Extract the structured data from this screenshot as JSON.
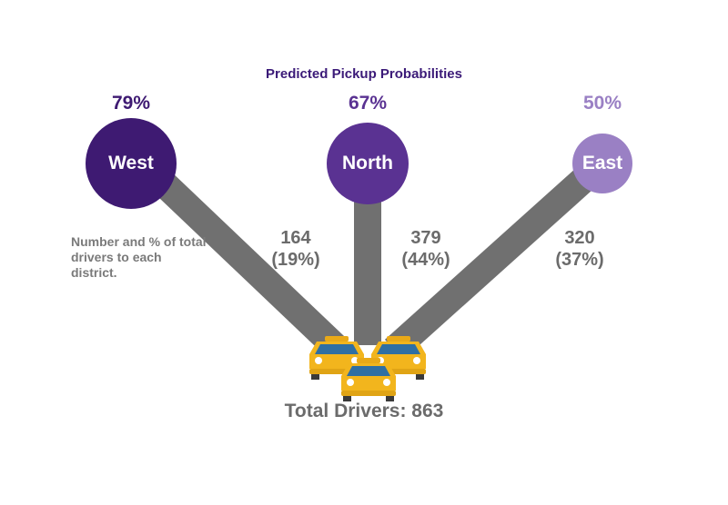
{
  "title": "Predicted Pickup Probabilities",
  "districts": [
    {
      "name": "West",
      "probability": "79%",
      "drivers": "164",
      "share": "(19%)",
      "color": "#3e1a72"
    },
    {
      "name": "North",
      "probability": "67%",
      "drivers": "379",
      "share": "(44%)",
      "color": "#5a3292"
    },
    {
      "name": "East",
      "probability": "50%",
      "drivers": "320",
      "share": "(37%)",
      "color": "#9a80c4"
    }
  ],
  "note": "Number and % of total drivers to each district.",
  "total": "Total Drivers: 863",
  "icons": [
    "taxi-icon",
    "taxi-icon",
    "taxi-icon"
  ],
  "colors": {
    "road": "#707070",
    "taxi": "#f2b51d",
    "text_gray": "#6b6b6b"
  }
}
